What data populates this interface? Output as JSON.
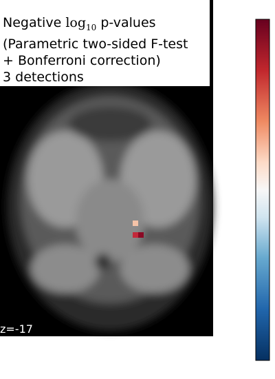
{
  "title": {
    "prefix": "Negative",
    "log": "log",
    "log_sub": "10",
    "suffix": "p-values",
    "line2": "(Parametric two-sided F-test",
    "line3": "+ Bonferroni correction)",
    "line4": "3 detections"
  },
  "slice_label": "z=-17"
}
